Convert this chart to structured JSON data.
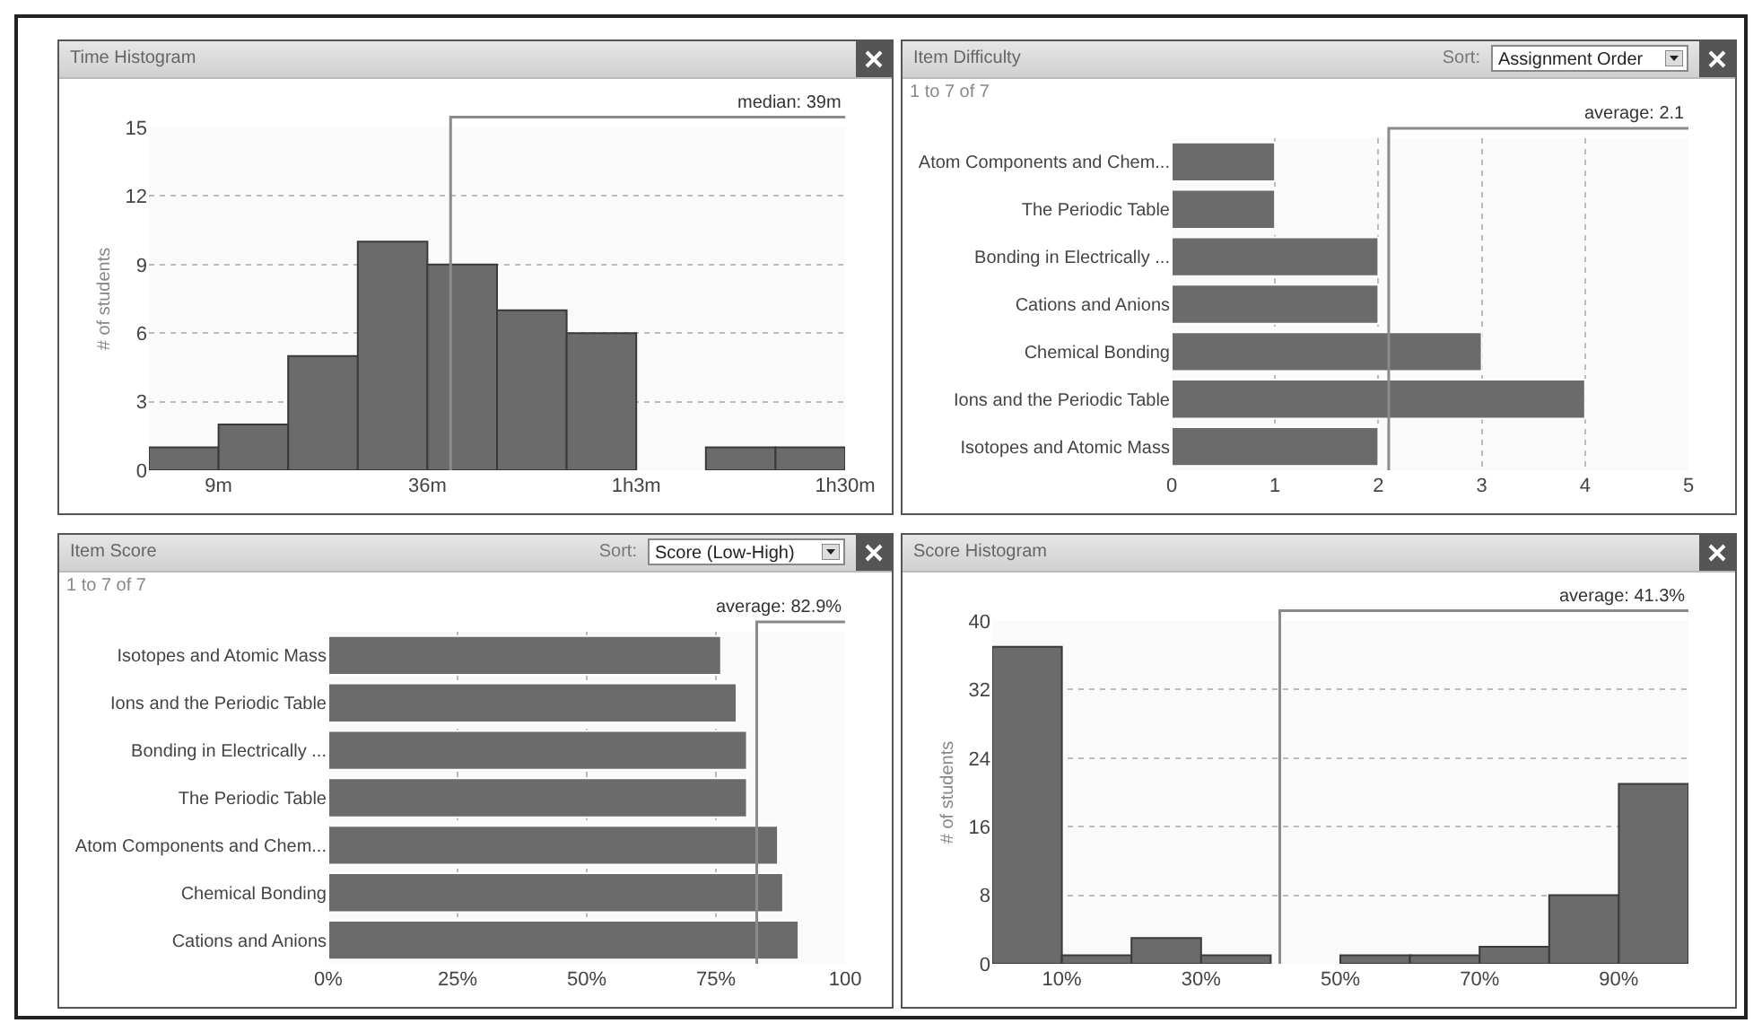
{
  "chart_data": [
    {
      "type": "histogram",
      "title": "Time Histogram",
      "ylabel": "# of students",
      "bins": [
        0,
        9,
        18,
        27,
        36,
        45,
        54,
        63,
        72,
        81,
        90
      ],
      "series": [
        {
          "color": "#6b6b6b",
          "values": [
            1,
            2,
            5,
            10,
            9,
            7,
            6,
            0,
            1,
            1
          ]
        }
      ],
      "xlim": [
        0,
        90
      ],
      "xticks": [
        {
          "value": 9,
          "label": "9m"
        },
        {
          "value": 36,
          "label": "36m"
        },
        {
          "value": 63,
          "label": "1h3m"
        },
        {
          "value": 90,
          "label": "1h30m"
        }
      ],
      "ylim": [
        0,
        15
      ],
      "yticks": [
        0,
        3,
        6,
        9,
        12,
        15
      ],
      "grid": "y",
      "ref_lines": [
        {
          "axis": "x",
          "value": 39,
          "label": "median: 39m",
          "color": "#8a8a8a"
        }
      ]
    },
    {
      "type": "bar",
      "orientation": "horizontal",
      "title": "Item Difficulty",
      "annotations": [
        "Sort:",
        "Assignment Order",
        "1 to 7 of 7"
      ],
      "categories": [
        "Atom Components and Chem...",
        "The Periodic Table",
        "Bonding in Electrically ...",
        "Cations and Anions",
        "Chemical Bonding",
        "Ions and the Periodic Table",
        "Isotopes and Atomic Mass"
      ],
      "series": [
        {
          "color": "#6b6b6b",
          "values": [
            1,
            1,
            2,
            2,
            3,
            4,
            2
          ]
        }
      ],
      "xlim": [
        0,
        5
      ],
      "xticks": [
        0,
        1,
        2,
        3,
        4,
        5
      ],
      "grid": "x",
      "ref_lines": [
        {
          "axis": "x",
          "value": 2.1,
          "label": "average: 2.1",
          "color": "#8a8a8a"
        }
      ]
    },
    {
      "type": "bar",
      "orientation": "horizontal",
      "title": "Item Score",
      "annotations": [
        "Sort:",
        "Score (Low-High)",
        "1 to 7 of 7"
      ],
      "categories": [
        "Isotopes and Atomic Mass",
        "Ions and the Periodic Table",
        "Bonding in Electrically ...",
        "The Periodic Table",
        "Atom Components and Chem...",
        "Chemical Bonding",
        "Cations and Anions"
      ],
      "series": [
        {
          "color": "#6b6b6b",
          "values": [
            76,
            79,
            81,
            81,
            87,
            88,
            91
          ]
        }
      ],
      "xlim": [
        0,
        100
      ],
      "xticks": [
        {
          "value": 0,
          "label": "0%"
        },
        {
          "value": 25,
          "label": "25%"
        },
        {
          "value": 50,
          "label": "50%"
        },
        {
          "value": 75,
          "label": "75%"
        },
        100
      ],
      "grid": "x",
      "ref_lines": [
        {
          "axis": "x",
          "value": 82.9,
          "label": "average: 82.9%",
          "color": "#8a8a8a"
        }
      ]
    },
    {
      "type": "histogram",
      "title": "Score Histogram",
      "ylabel": "# of students",
      "bins": [
        0,
        10,
        20,
        30,
        40,
        50,
        60,
        70,
        80,
        90,
        100
      ],
      "series": [
        {
          "color": "#6b6b6b",
          "values": [
            37,
            1,
            3,
            1,
            0,
            1,
            1,
            2,
            8,
            21
          ]
        }
      ],
      "xlim": [
        0,
        100
      ],
      "xticks": [
        {
          "value": 10,
          "label": "10%"
        },
        {
          "value": 30,
          "label": "30%"
        },
        {
          "value": 50,
          "label": "50%"
        },
        {
          "value": 70,
          "label": "70%"
        },
        {
          "value": 90,
          "label": "90%"
        }
      ],
      "ylim": [
        0,
        40
      ],
      "yticks": [
        0,
        8,
        16,
        24,
        32,
        40
      ],
      "grid": "y",
      "ref_lines": [
        {
          "axis": "x",
          "value": 41.3,
          "label": "average: 41.3%",
          "color": "#8a8a8a"
        }
      ]
    }
  ]
}
